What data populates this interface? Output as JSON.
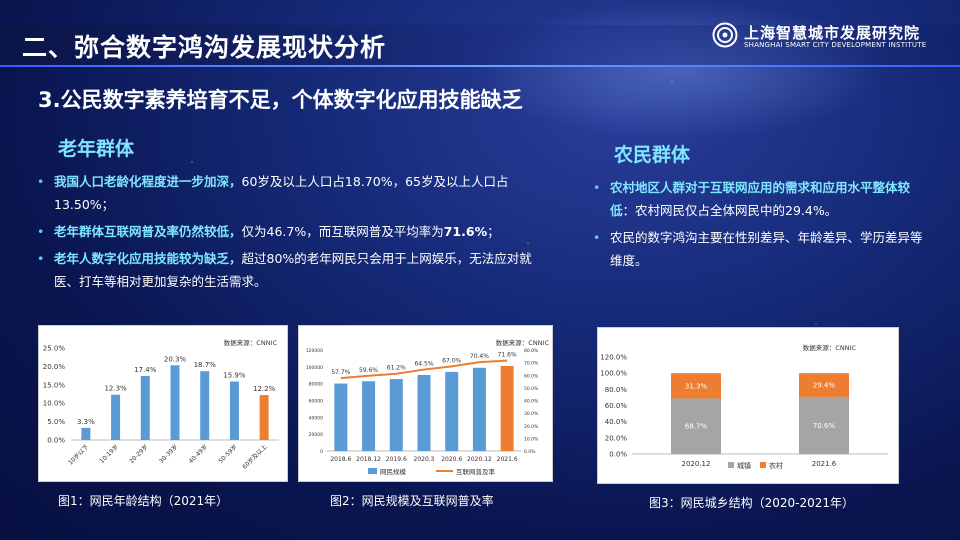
{
  "header": {
    "title": "二、弥合数字鸿沟发展现状分析",
    "logo_cn": "上海智慧城市发展研究院",
    "logo_en": "SHANGHAI SMART CITY DEVELOPMENT INSTITUTE"
  },
  "subtitle": "3.公民数字素养培育不足，个体数字化应用技能缺乏",
  "elderly": {
    "title": "老年群体",
    "b1_hl": "我国人口老龄化程度进一步加深，",
    "b1_rest": "60岁及以上人口占18.70%，65岁及以上人口占13.50%；",
    "b2_hl": "老年群体互联网普及率仍然较低，",
    "b2_rest": "仅为46.7%，而互联网普及平均率为",
    "b2_bold": "71.6%",
    "b2_end": "；",
    "b3_hl": "老年人数字化应用技能较为缺乏，",
    "b3_rest": "超过80%的老年网民只会用于上网娱乐，无法应对就医、打车等相对更加复杂的生活需求。"
  },
  "farmers": {
    "title": "农民群体",
    "b1_hl": "农村地区人群对于互联网应用的需求和应用水平整体较低",
    "b1_rest": "：农村网民仅占全体网民中的29.4%。",
    "b2": "农民的数字鸿沟主要在性别差异、年龄差异、学历差异等维度。"
  },
  "captions": {
    "c1": "图1：网民年龄结构（2021年）",
    "c2": "图2：网民规模及互联网普及率",
    "c3": "图3：网民城乡结构（2020-2021年）"
  },
  "colors": {
    "blue": "#5b9bd5",
    "orange": "#ed7d31",
    "gray": "#a5a5a5"
  },
  "chart_data": [
    {
      "type": "bar",
      "source": "数据来源：CNNIC",
      "categories": [
        "10岁以下",
        "10-19岁",
        "20-29岁",
        "30-39岁",
        "40-49岁",
        "50-59岁",
        "60岁及以上"
      ],
      "values": [
        3.3,
        12.3,
        17.4,
        20.3,
        18.7,
        15.9,
        12.2
      ],
      "value_labels": [
        "3.3%",
        "12.3%",
        "17.4%",
        "20.3%",
        "18.7%",
        "15.9%",
        "12.2%"
      ],
      "highlight_index": 6,
      "ylim": [
        0,
        25
      ],
      "yticks": [
        "0.0%",
        "5.0%",
        "10.0%",
        "15.0%",
        "20.0%",
        "25.0%"
      ]
    },
    {
      "type": "bar",
      "source": "数据来源：CNNIC",
      "categories": [
        "2018.6",
        "2018.12",
        "2019.6",
        "2020.3",
        "2020.6",
        "2020.12",
        "2021.6"
      ],
      "series": [
        {
          "name": "网民规模",
          "type": "bar",
          "values": [
            80166,
            82851,
            85449,
            90359,
            93984,
            98899,
            101074
          ]
        },
        {
          "name": "互联网普及率",
          "type": "line",
          "values": [
            57.7,
            59.6,
            61.2,
            64.5,
            67.0,
            70.4,
            71.6
          ],
          "labels": [
            "57.7%",
            "59.6%",
            "61.2%",
            "64.5%",
            "67.0%",
            "70.4%",
            "71.6%"
          ]
        }
      ],
      "highlight_index": 6,
      "ylim": [
        0,
        120000
      ],
      "ylim_right": [
        0,
        80
      ],
      "yticks": [
        "0",
        "20000",
        "40000",
        "60000",
        "80000",
        "100000",
        "120000"
      ],
      "yticks_right": [
        "0.0%",
        "10.0%",
        "20.0%",
        "30.0%",
        "40.0%",
        "50.0%",
        "60.0%",
        "70.0%",
        "80.0%"
      ]
    },
    {
      "type": "bar",
      "stacked": true,
      "source": "数据来源：CNNIC",
      "categories": [
        "2020.12",
        "2021.6"
      ],
      "series": [
        {
          "name": "城镇",
          "values": [
            68.7,
            70.6
          ],
          "labels": [
            "68.7%",
            "70.6%"
          ]
        },
        {
          "name": "农村",
          "values": [
            31.3,
            29.4
          ],
          "labels": [
            "31.3%",
            "29.4%"
          ]
        }
      ],
      "ylim": [
        0,
        120
      ],
      "yticks": [
        "0.0%",
        "20.0%",
        "40.0%",
        "60.0%",
        "80.0%",
        "100.0%",
        "120.0%"
      ]
    }
  ]
}
